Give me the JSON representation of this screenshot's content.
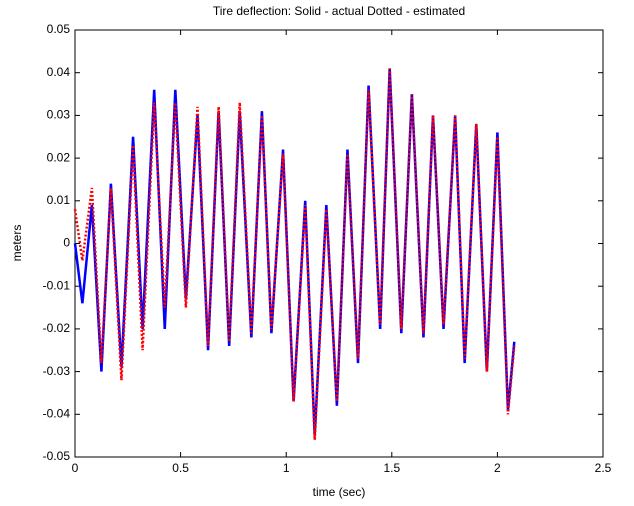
{
  "chart_data": {
    "type": "line",
    "title": "Tire deflection: Solid - actual  Dotted - estimated",
    "xlabel": "time (sec)",
    "ylabel": "meters",
    "x": [
      0,
      0.035,
      0.08,
      0.125,
      0.17,
      0.22,
      0.275,
      0.32,
      0.375,
      0.425,
      0.475,
      0.525,
      0.58,
      0.63,
      0.68,
      0.73,
      0.78,
      0.835,
      0.885,
      0.93,
      0.985,
      1.035,
      1.09,
      1.135,
      1.19,
      1.24,
      1.29,
      1.34,
      1.39,
      1.445,
      1.49,
      1.545,
      1.595,
      1.65,
      1.695,
      1.745,
      1.8,
      1.845,
      1.9,
      1.95,
      2.0,
      2.05,
      2.08
    ],
    "series": [
      {
        "color": "#0000ff",
        "dash": "solid",
        "values": [
          0,
          -0.014,
          0.009,
          -0.03,
          0.014,
          -0.029,
          0.025,
          -0.02,
          0.036,
          -0.02,
          0.036,
          -0.013,
          0.03,
          -0.025,
          0.031,
          -0.024,
          0.031,
          -0.022,
          0.031,
          -0.021,
          0.022,
          -0.037,
          0.01,
          -0.045,
          0.009,
          -0.038,
          0.022,
          -0.028,
          0.037,
          -0.02,
          0.041,
          -0.021,
          0.035,
          -0.022,
          0.03,
          -0.02,
          0.03,
          -0.028,
          0.028,
          -0.03,
          0.026,
          -0.039,
          -0.023
        ]
      },
      {
        "color": "#ff0000",
        "dash": "dotted",
        "values": [
          0.008,
          -0.004,
          0.013,
          -0.028,
          0.013,
          -0.032,
          0.023,
          -0.025,
          0.033,
          -0.015,
          0.033,
          -0.015,
          0.032,
          -0.024,
          0.032,
          -0.023,
          0.033,
          -0.021,
          0.03,
          -0.02,
          0.021,
          -0.037,
          0.009,
          -0.046,
          0.008,
          -0.037,
          0.021,
          -0.027,
          0.036,
          -0.019,
          0.041,
          -0.02,
          0.035,
          -0.021,
          0.03,
          -0.019,
          0.03,
          -0.027,
          0.028,
          -0.03,
          0.025,
          -0.04,
          -0.024
        ]
      }
    ],
    "xlim": [
      0,
      2.5
    ],
    "xticks": [
      0,
      0.5,
      1,
      1.5,
      2,
      2.5
    ],
    "ylim": [
      -0.05,
      0.05
    ],
    "yticks": [
      -0.05,
      -0.04,
      -0.03,
      -0.02,
      -0.01,
      0,
      0.01,
      0.02,
      0.03,
      0.04,
      0.05
    ]
  }
}
